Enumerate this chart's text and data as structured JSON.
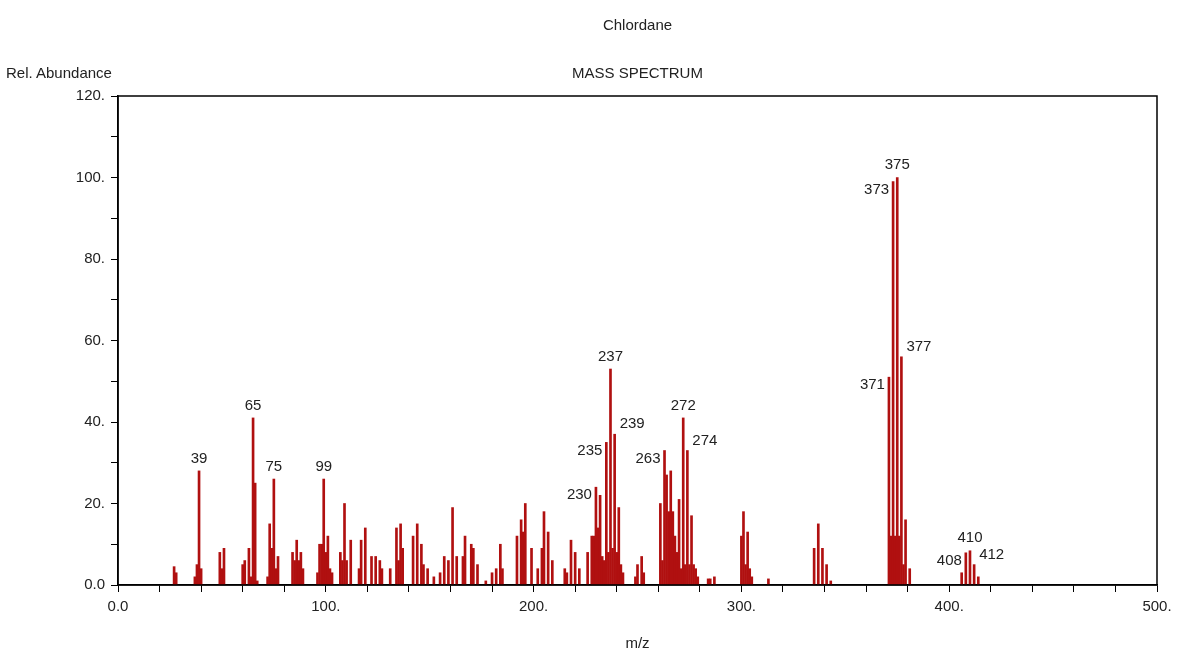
{
  "chart_data": {
    "type": "bar",
    "title": "Chlordane",
    "subtitle": "MASS SPECTRUM",
    "xlabel": "m/z",
    "ylabel": "Rel. Abundance",
    "color": "#b01010",
    "x": [
      27,
      28,
      37,
      38,
      39,
      40,
      49,
      50,
      51,
      60,
      61,
      63,
      64,
      65,
      66,
      67,
      72,
      73,
      74,
      75,
      76,
      77,
      84,
      85,
      86,
      87,
      88,
      89,
      96,
      97,
      98,
      99,
      100,
      101,
      102,
      103,
      107,
      108,
      109,
      110,
      112,
      116,
      117,
      119,
      122,
      124,
      126,
      127,
      131,
      134,
      135,
      136,
      137,
      142,
      144,
      146,
      147,
      149,
      152,
      155,
      157,
      159,
      161,
      163,
      166,
      167,
      170,
      171,
      173,
      177,
      180,
      182,
      184,
      185,
      192,
      194,
      195,
      196,
      199,
      202,
      204,
      205,
      207,
      209,
      215,
      216,
      218,
      220,
      222,
      226,
      228,
      229,
      230,
      231,
      232,
      233,
      234,
      235,
      236,
      237,
      238,
      239,
      240,
      241,
      242,
      243,
      249,
      250,
      252,
      253,
      261,
      262,
      263,
      264,
      265,
      266,
      267,
      268,
      269,
      270,
      271,
      272,
      273,
      274,
      275,
      276,
      277,
      278,
      279,
      284,
      285,
      287,
      300,
      301,
      302,
      303,
      304,
      305,
      313,
      335,
      337,
      339,
      341,
      343,
      371,
      372,
      373,
      374,
      375,
      376,
      377,
      378,
      379,
      381,
      406,
      408,
      410,
      412,
      414
    ],
    "values": [
      4.5,
      3,
      2,
      5,
      28,
      4,
      8,
      4,
      9,
      5,
      6,
      9,
      2,
      41,
      25,
      1,
      2,
      15,
      9,
      26,
      4,
      7,
      8,
      6,
      11,
      6,
      8,
      4,
      3,
      10,
      10,
      26,
      8,
      12,
      4,
      3,
      8,
      6,
      20,
      6,
      11,
      4,
      11,
      14,
      7,
      7,
      6,
      4,
      4,
      14,
      6,
      15,
      9,
      12,
      15,
      10,
      5,
      4,
      2,
      3,
      7,
      6,
      19,
      7,
      7,
      12,
      10,
      9,
      5,
      1,
      3,
      4,
      10,
      4,
      12,
      16,
      13,
      20,
      9,
      4,
      9,
      18,
      13,
      6,
      4,
      3,
      11,
      8,
      4,
      8,
      12,
      12,
      24,
      14,
      22,
      7,
      6,
      35,
      8,
      53,
      9,
      37,
      8,
      19,
      5,
      3,
      2,
      5,
      7,
      3,
      20,
      6,
      33,
      27,
      18,
      28,
      18,
      12,
      8,
      21,
      4,
      41,
      5,
      33,
      5,
      17,
      5,
      4,
      2,
      1.5,
      1.5,
      2,
      12,
      18,
      5,
      13,
      4,
      2,
      1.5,
      9,
      15,
      9,
      5,
      1,
      51,
      12,
      99,
      12,
      100,
      12,
      56,
      5,
      16,
      4,
      3,
      7.9,
      8.4,
      5,
      2
    ],
    "xlim": [
      0,
      500
    ],
    "xticks": [
      {
        "value": 0,
        "label": "0.0"
      },
      {
        "value": 20,
        "label": null
      },
      {
        "value": 40,
        "label": null
      },
      {
        "value": 60,
        "label": null
      },
      {
        "value": 80,
        "label": null
      },
      {
        "value": 100,
        "label": "100."
      },
      {
        "value": 120,
        "label": null
      },
      {
        "value": 140,
        "label": null
      },
      {
        "value": 160,
        "label": null
      },
      {
        "value": 180,
        "label": null
      },
      {
        "value": 200,
        "label": "200."
      },
      {
        "value": 220,
        "label": null
      },
      {
        "value": 240,
        "label": null
      },
      {
        "value": 260,
        "label": null
      },
      {
        "value": 280,
        "label": null
      },
      {
        "value": 300,
        "label": "300."
      },
      {
        "value": 320,
        "label": null
      },
      {
        "value": 340,
        "label": null
      },
      {
        "value": 360,
        "label": null
      },
      {
        "value": 380,
        "label": null
      },
      {
        "value": 400,
        "label": "400."
      },
      {
        "value": 420,
        "label": null
      },
      {
        "value": 440,
        "label": null
      },
      {
        "value": 460,
        "label": null
      },
      {
        "value": 480,
        "label": null
      },
      {
        "value": 500,
        "label": "500."
      }
    ],
    "ylim": [
      0,
      120
    ],
    "yticks": [
      {
        "value": 0,
        "label": "0.0"
      },
      {
        "value": 10,
        "label": null
      },
      {
        "value": 20,
        "label": "20."
      },
      {
        "value": 30,
        "label": null
      },
      {
        "value": 40,
        "label": "40."
      },
      {
        "value": 50,
        "label": null
      },
      {
        "value": 60,
        "label": "60."
      },
      {
        "value": 70,
        "label": null
      },
      {
        "value": 80,
        "label": "80."
      },
      {
        "value": 90,
        "label": null
      },
      {
        "value": 100,
        "label": "100."
      },
      {
        "value": 110,
        "label": null
      },
      {
        "value": 120,
        "label": "120."
      }
    ],
    "annotations": [
      {
        "text": "39",
        "x": 39,
        "y": 28
      },
      {
        "text": "65",
        "x": 65,
        "y": 41
      },
      {
        "text": "75",
        "x": 75,
        "y": 26
      },
      {
        "text": "99",
        "x": 99,
        "y": 26
      },
      {
        "text": "230",
        "x": 230,
        "y": 24
      },
      {
        "text": "235",
        "x": 235,
        "y": 35
      },
      {
        "text": "237",
        "x": 237,
        "y": 53
      },
      {
        "text": "239",
        "x": 239,
        "y": 37
      },
      {
        "text": "263",
        "x": 263,
        "y": 33
      },
      {
        "text": "272",
        "x": 272,
        "y": 41
      },
      {
        "text": "274",
        "x": 274,
        "y": 33
      },
      {
        "text": "371",
        "x": 371,
        "y": 51
      },
      {
        "text": "373",
        "x": 373,
        "y": 99
      },
      {
        "text": "375",
        "x": 375,
        "y": 100
      },
      {
        "text": "377",
        "x": 377,
        "y": 56
      },
      {
        "text": "408",
        "x": 408,
        "y": 7.9
      },
      {
        "text": "410",
        "x": 410,
        "y": 8.4
      },
      {
        "text": "412",
        "x": 412,
        "y": 5
      }
    ]
  }
}
